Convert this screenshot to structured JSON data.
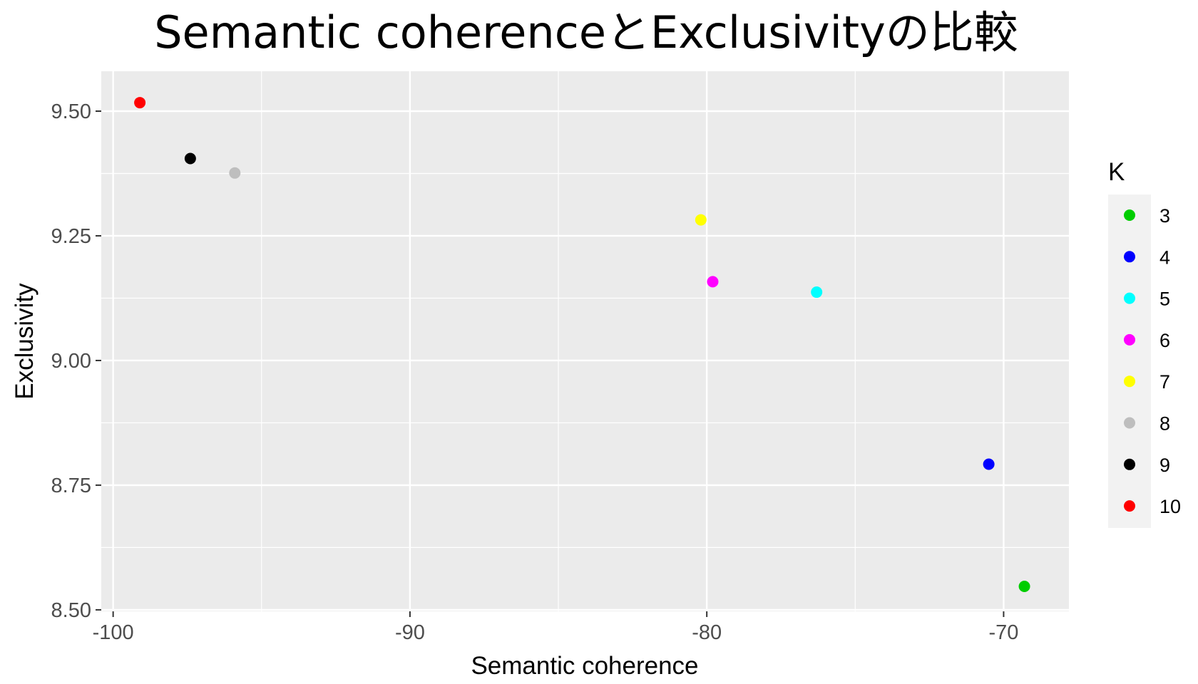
{
  "chart_data": {
    "type": "scatter",
    "title": "Semantic coherenceとExclusivityの比較",
    "xlabel": "Semantic coherence",
    "ylabel": "Exclusivity",
    "xlim": [
      -100.4,
      -67.8
    ],
    "ylim": [
      8.497,
      9.58
    ],
    "xticks": [
      -100,
      -90,
      -80,
      -70
    ],
    "xtick_labels": [
      "-100",
      "-90",
      "-80",
      "-70"
    ],
    "yticks": [
      8.5,
      8.75,
      9.0,
      9.25,
      9.5
    ],
    "ytick_labels": [
      "8.50",
      "8.75",
      "9.00",
      "9.25",
      "9.50"
    ],
    "grid": true,
    "legend": {
      "title": "K",
      "placement": "right"
    },
    "points": [
      {
        "k": "3",
        "x": -69.3,
        "y": 8.547,
        "color": "#00CD00"
      },
      {
        "k": "4",
        "x": -70.5,
        "y": 8.792,
        "color": "#0000FF"
      },
      {
        "k": "5",
        "x": -76.3,
        "y": 9.137,
        "color": "#00FFFF"
      },
      {
        "k": "6",
        "x": -79.8,
        "y": 9.158,
        "color": "#FF00FF"
      },
      {
        "k": "7",
        "x": -80.2,
        "y": 9.282,
        "color": "#FFFF00"
      },
      {
        "k": "8",
        "x": -95.9,
        "y": 9.376,
        "color": "#BEBEBE"
      },
      {
        "k": "9",
        "x": -97.4,
        "y": 9.405,
        "color": "#000000"
      },
      {
        "k": "10",
        "x": -99.1,
        "y": 9.517,
        "color": "#FF0000"
      }
    ],
    "colors": {
      "panel_background": "#EBEBEB",
      "grid_major": "#FFFFFF",
      "legend_key_background": "#F2F2F2"
    }
  }
}
